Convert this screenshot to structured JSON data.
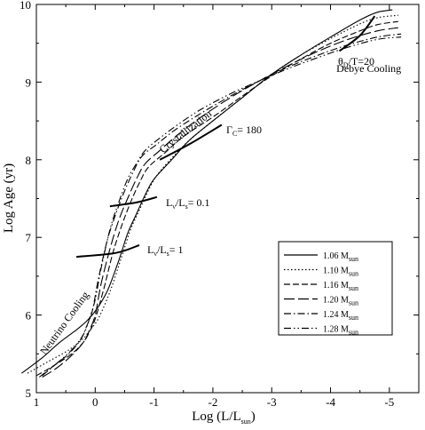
{
  "chart_data": {
    "type": "line",
    "xlabel": "Log (L/L",
    "xlabel_sub": "sun",
    "xlabel_tail": ")",
    "ylabel": "Log Age (yr)",
    "xlim": [
      1,
      -5.5
    ],
    "ylim": [
      5,
      10
    ],
    "xticks": [
      1,
      0,
      -1,
      -2,
      -3,
      -4,
      -5
    ],
    "yticks": [
      5,
      6,
      7,
      8,
      9,
      10
    ],
    "xtick_labels": [
      "1",
      "0",
      "-1",
      "-2",
      "-3",
      "-4",
      "-5"
    ],
    "ytick_labels": [
      "5",
      "6",
      "7",
      "8",
      "9",
      "10"
    ],
    "grid": false,
    "legend_position": "bottom-right",
    "legend_prefix": "1.",
    "legend_sub": "sun",
    "series": [
      {
        "name": "1.06 M",
        "dash": "",
        "x": [
          1.25,
          0.9,
          0.6,
          0.3,
          0.15,
          0.0,
          -0.2,
          -0.4,
          -0.55,
          -0.7,
          -0.85,
          -1.0,
          -1.3,
          -1.6,
          -2.0,
          -2.5,
          -3.0,
          -3.5,
          -4.0,
          -4.5,
          -4.8,
          -5.05
        ],
        "y": [
          5.25,
          5.45,
          5.65,
          5.82,
          5.92,
          6.05,
          6.3,
          6.7,
          7.05,
          7.3,
          7.55,
          7.75,
          8.0,
          8.25,
          8.5,
          8.8,
          9.1,
          9.35,
          9.58,
          9.8,
          9.9,
          9.93
        ]
      },
      {
        "name": "1.10 M",
        "dash": "1.5,2.5",
        "x": [
          1.15,
          0.8,
          0.45,
          0.2,
          0.1,
          -0.05,
          -0.25,
          -0.45,
          -0.6,
          -0.75,
          -0.9,
          -1.05,
          -1.3,
          -1.6,
          -2.0,
          -2.5,
          -3.0,
          -3.5,
          -4.0,
          -4.5,
          -4.8,
          -5.15
        ],
        "y": [
          5.25,
          5.4,
          5.55,
          5.7,
          5.8,
          5.95,
          6.3,
          6.75,
          7.1,
          7.35,
          7.6,
          7.8,
          8.02,
          8.25,
          8.5,
          8.8,
          9.1,
          9.35,
          9.56,
          9.75,
          9.83,
          9.86
        ]
      },
      {
        "name": "1.16 M",
        "dash": "7,3",
        "x": [
          1.0,
          0.7,
          0.4,
          0.2,
          0.1,
          0.0,
          -0.15,
          -0.3,
          -0.45,
          -0.6,
          -0.75,
          -0.9,
          -1.2,
          -1.5,
          -2.0,
          -2.5,
          -3.0,
          -3.5,
          -4.0,
          -4.5,
          -4.8,
          -5.15
        ],
        "y": [
          5.22,
          5.35,
          5.5,
          5.65,
          5.78,
          5.95,
          6.35,
          6.8,
          7.15,
          7.45,
          7.7,
          7.9,
          8.1,
          8.3,
          8.55,
          8.82,
          9.08,
          9.3,
          9.5,
          9.66,
          9.74,
          9.78
        ]
      },
      {
        "name": "1.20 M",
        "dash": "12,4",
        "x": [
          0.9,
          0.65,
          0.4,
          0.2,
          0.1,
          0.0,
          -0.1,
          -0.25,
          -0.4,
          -0.55,
          -0.7,
          -0.85,
          -1.1,
          -1.4,
          -1.8,
          -2.3,
          -2.8,
          -3.3,
          -3.8,
          -4.3,
          -4.8,
          -5.15
        ],
        "y": [
          5.2,
          5.32,
          5.48,
          5.65,
          5.8,
          6.0,
          6.4,
          6.85,
          7.22,
          7.5,
          7.75,
          7.95,
          8.12,
          8.32,
          8.55,
          8.8,
          9.02,
          9.22,
          9.4,
          9.55,
          9.66,
          9.7
        ]
      },
      {
        "name": "1.24 M",
        "dash": "8,3,1.5,3",
        "x": [
          0.95,
          0.7,
          0.45,
          0.25,
          0.15,
          0.05,
          -0.05,
          -0.2,
          -0.35,
          -0.5,
          -0.65,
          -0.8,
          -1.05,
          -1.35,
          -1.8,
          -2.3,
          -2.8,
          -3.3,
          -3.8,
          -4.3,
          -4.8,
          -5.2
        ],
        "y": [
          5.2,
          5.35,
          5.5,
          5.68,
          5.85,
          6.05,
          6.45,
          6.95,
          7.3,
          7.6,
          7.85,
          8.05,
          8.2,
          8.38,
          8.6,
          8.82,
          9.02,
          9.2,
          9.35,
          9.48,
          9.58,
          9.62
        ]
      },
      {
        "name": "1.28 M",
        "dash": "8,3,1.5,3,1.5,3",
        "x": [
          0.9,
          0.65,
          0.4,
          0.2,
          0.1,
          0.0,
          -0.1,
          -0.25,
          -0.4,
          -0.55,
          -0.7,
          -0.85,
          -1.1,
          -1.4,
          -1.8,
          -2.3,
          -2.8,
          -3.3,
          -3.8,
          -4.3,
          -4.8,
          -5.2
        ],
        "y": [
          5.22,
          5.38,
          5.55,
          5.75,
          5.95,
          6.2,
          6.6,
          7.1,
          7.45,
          7.75,
          7.95,
          8.12,
          8.28,
          8.45,
          8.65,
          8.85,
          9.02,
          9.18,
          9.32,
          9.45,
          9.55,
          9.58
        ]
      }
    ],
    "isochrones": [
      {
        "label": "L_v/L_s=1",
        "x": [
          0.32,
          -0.35,
          -0.75
        ],
        "y": [
          6.75,
          6.8,
          6.9
        ]
      },
      {
        "label": "L_v/L_s=0.1",
        "x": [
          -0.25,
          -0.7,
          -1.05
        ],
        "y": [
          7.4,
          7.45,
          7.52
        ]
      },
      {
        "label": "Gamma_C=180",
        "x": [
          -1.1,
          -1.6,
          -2.15
        ],
        "y": [
          8.0,
          8.2,
          8.45
        ]
      },
      {
        "label": "theta_D/T=20",
        "x": [
          -4.15,
          -4.5,
          -4.75
        ],
        "y": [
          9.4,
          9.6,
          9.85
        ]
      }
    ],
    "annotations": [
      {
        "key": "neutrino",
        "text": "Neutrino Cooling",
        "x": 0.85,
        "y": 5.48,
        "rotate": -54
      },
      {
        "key": "crystal",
        "text": "Crystallization",
        "x": -1.15,
        "y": 8.08,
        "rotate": -38
      },
      {
        "key": "debye",
        "text": "Debye Cooling",
        "x": -4.1,
        "y": 9.13,
        "rotate": 0
      }
    ],
    "labels": {
      "lv1_main": "L",
      "lv1_sub1": "ν",
      "lv1_mid": "/L",
      "lv1_sub2": "s",
      "lv1_tail": "= 1",
      "lv01_main": "L",
      "lv01_sub1": "ν",
      "lv01_mid": "/L",
      "lv01_sub2": "s",
      "lv01_tail": "= 0.1",
      "gamma_main": "Γ",
      "gamma_sub": "C",
      "gamma_tail": "= 180",
      "theta_main": "θ",
      "theta_sub": "D",
      "theta_tail": "/T=20"
    }
  }
}
